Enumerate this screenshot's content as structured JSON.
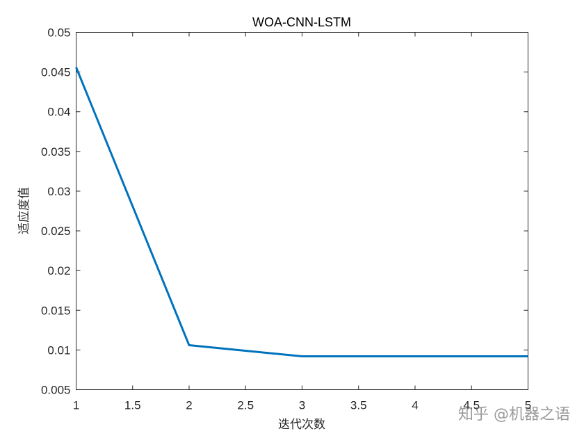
{
  "chart_data": {
    "type": "line",
    "title": "WOA-CNN-LSTM",
    "xlabel": "迭代次数",
    "ylabel": "适应度值",
    "xlim": [
      1,
      5
    ],
    "ylim": [
      0.005,
      0.05
    ],
    "x_ticks": [
      "1",
      "1.5",
      "2",
      "2.5",
      "3",
      "3.5",
      "4",
      "4.5",
      "5"
    ],
    "y_ticks": [
      "0.005",
      "0.01",
      "0.015",
      "0.02",
      "0.025",
      "0.03",
      "0.035",
      "0.04",
      "0.045",
      "0.05"
    ],
    "grid": false,
    "series": [
      {
        "x": [
          1,
          2,
          3,
          4,
          5
        ],
        "values": [
          0.0456,
          0.0106,
          0.0092,
          0.0092,
          0.0092
        ],
        "color": "#0072BD"
      }
    ]
  },
  "watermark": "知乎 @机器之语"
}
